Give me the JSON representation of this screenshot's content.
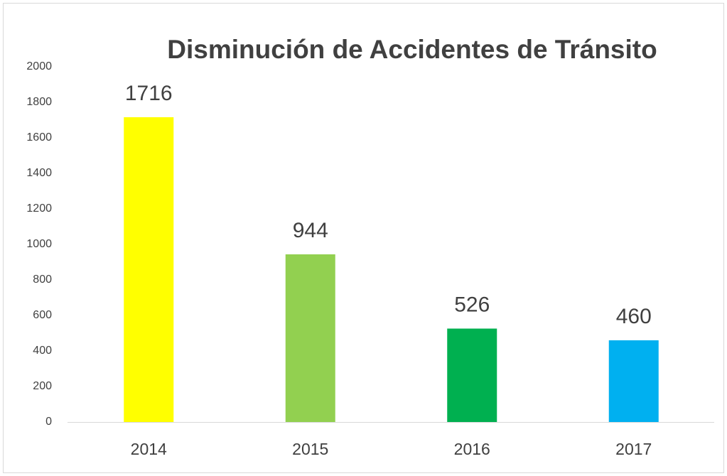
{
  "chart_data": {
    "type": "bar",
    "title": "Disminución de Accidentes de Tránsito",
    "categories": [
      "2014",
      "2015",
      "2016",
      "2017"
    ],
    "values": [
      1716,
      944,
      526,
      460
    ],
    "colors": [
      "#ffff00",
      "#92d050",
      "#00b050",
      "#00b0f0"
    ],
    "ylim": [
      0,
      2000
    ],
    "yticks": [
      0,
      200,
      400,
      600,
      800,
      1000,
      1200,
      1400,
      1600,
      1800,
      2000
    ],
    "grid": false
  }
}
